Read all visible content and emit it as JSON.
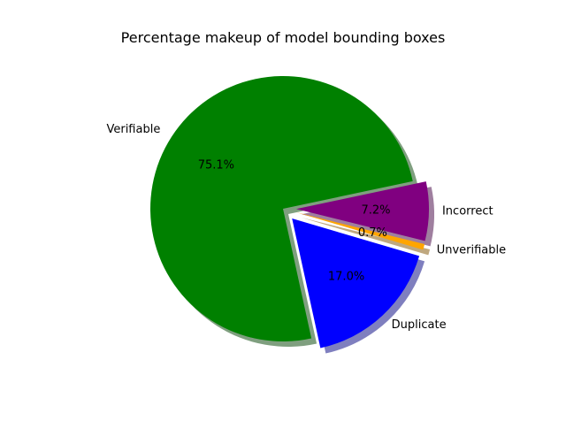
{
  "chart_data": {
    "type": "pie",
    "title": "Percentage makeup of model bounding boxes",
    "slices": [
      {
        "label": "Verifiable",
        "value": 75.1,
        "pct_label": "75.1%",
        "color": "#008000",
        "explode": 0.0
      },
      {
        "label": "Duplicate",
        "value": 17.0,
        "pct_label": "17.0%",
        "color": "#0000ff",
        "explode": 0.1
      },
      {
        "label": "Unverifiable",
        "value": 0.7,
        "pct_label": "0.7%",
        "color": "#ffa500",
        "explode": 0.1
      },
      {
        "label": "Incorrect",
        "value": 7.2,
        "pct_label": "7.2%",
        "color": "#800080",
        "explode": 0.1
      }
    ],
    "start_angle_deg": 12,
    "direction": "counterclockwise",
    "shadow": true
  }
}
